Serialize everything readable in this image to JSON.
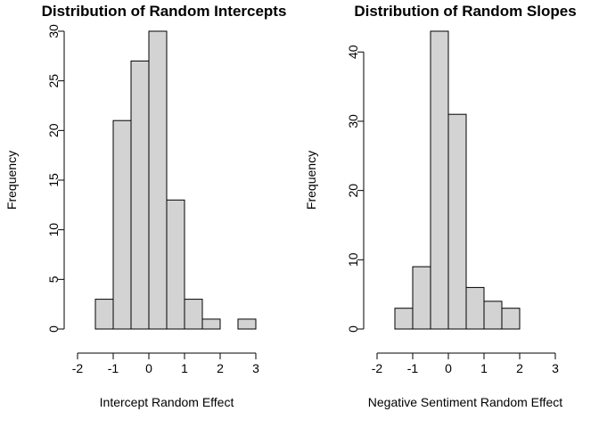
{
  "chart_data": [
    {
      "type": "bar",
      "title": "Distribution of Random Intercepts",
      "xlabel": "Intercept Random Effect",
      "ylabel": "Frequency",
      "bin_edges": [
        -2,
        -1.5,
        -1,
        -0.5,
        0,
        0.5,
        1,
        1.5,
        2,
        2.5,
        3
      ],
      "values": [
        0,
        3,
        21,
        27,
        30,
        13,
        3,
        1,
        0,
        1
      ],
      "xlim": [
        -2,
        3
      ],
      "ylim": [
        0,
        30
      ],
      "x_ticks": [
        -2,
        -1,
        0,
        1,
        2,
        3
      ],
      "y_ticks": [
        0,
        5,
        10,
        15,
        20,
        25,
        30
      ],
      "grid": false
    },
    {
      "type": "bar",
      "title": "Distribution of Random Slopes",
      "xlabel": "Negative Sentiment Random Effect",
      "ylabel": "Frequency",
      "bin_edges": [
        -2,
        -1.5,
        -1,
        -0.5,
        0,
        0.5,
        1,
        1.5,
        2,
        2.5,
        3
      ],
      "values": [
        0,
        3,
        9,
        43,
        31,
        6,
        4,
        3,
        0,
        0
      ],
      "xlim": [
        -2,
        3
      ],
      "ylim": [
        0,
        43
      ],
      "x_ticks": [
        -2,
        -1,
        0,
        1,
        2,
        3
      ],
      "y_ticks": [
        0,
        10,
        20,
        30,
        40
      ],
      "grid": false
    }
  ]
}
